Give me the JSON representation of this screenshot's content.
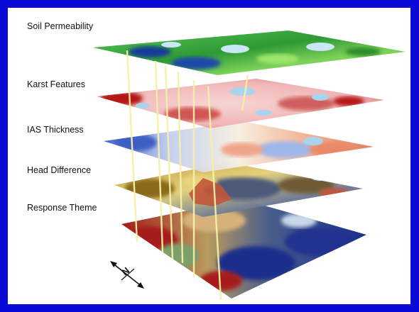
{
  "layers": [
    {
      "id": "soil-permeability",
      "label": "Soil Permeability",
      "colors": [
        "#2e9e2e",
        "#4cc84c",
        "#9ee86a",
        "#133a9a",
        "#c9e7f5"
      ]
    },
    {
      "id": "karst-features",
      "label": "Karst Features",
      "colors": [
        "#f4c2c2",
        "#e89090",
        "#b61818",
        "#fbe4e4",
        "#a9d4ee"
      ]
    },
    {
      "id": "ias-thickness",
      "label": "IAS Thickness",
      "colors": [
        "#3f63c7",
        "#9fb6ea",
        "#f3e8d8",
        "#f0a58a",
        "#d8492e"
      ]
    },
    {
      "id": "head-difference",
      "label": "Head Difference",
      "colors": [
        "#c9a640",
        "#8b6a1d",
        "#4e5a7a",
        "#e9d580",
        "#c2553a"
      ]
    },
    {
      "id": "response-theme",
      "label": "Response Theme",
      "colors": [
        "#a61b1b",
        "#7d9f6a",
        "#1c2f8c",
        "#d6b27a",
        "#ffffff"
      ]
    }
  ],
  "compass": {
    "letter": "N",
    "icon": "north-arrow-icon"
  }
}
